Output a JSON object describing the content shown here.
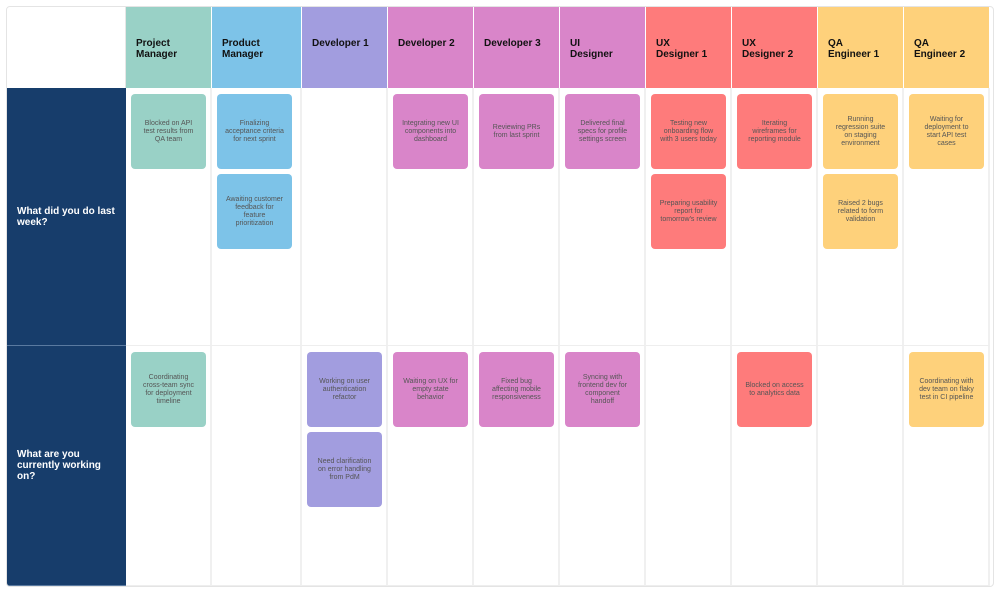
{
  "columns": [
    {
      "title": "Project\nManager",
      "color": "#99d1c6"
    },
    {
      "title": "Product\nManager",
      "color": "#7dc3e8"
    },
    {
      "title": "Developer 1",
      "color": "#a29ddf"
    },
    {
      "title": "Developer 2",
      "color": "#d985c9"
    },
    {
      "title": "Developer 3",
      "color": "#d985c9"
    },
    {
      "title": "UI\nDesigner",
      "color": "#d985c9"
    },
    {
      "title": "UX\nDesigner 1",
      "color": "#fe7b7b"
    },
    {
      "title": "UX\nDesigner 2",
      "color": "#fe7b7b"
    },
    {
      "title": "QA\nEngineer 1",
      "color": "#fed17b"
    },
    {
      "title": "QA\nEngineer 2",
      "color": "#fed17b"
    }
  ],
  "rows": [
    {
      "label": "What did you do last week?",
      "cells": [
        [
          "Blocked on API test results from QA team"
        ],
        [
          "Finalizing acceptance criteria for next sprint",
          "Awaiting customer feedback for feature prioritization"
        ],
        [],
        [
          "Integrating new UI components into dashboard"
        ],
        [
          "Reviewing PRs from last sprint"
        ],
        [
          "Delivered final specs for profile settings screen"
        ],
        [
          "Testing new onboarding flow with 3 users today",
          "Preparing usability report for tomorrow's review"
        ],
        [
          "Iterating wireframes for reporting module"
        ],
        [
          "Running regression suite on staging environment",
          "Raised 2 bugs related to form validation"
        ],
        [
          "Waiting for deployment to start API test cases"
        ]
      ]
    },
    {
      "label": "What are you currently working on?",
      "cells": [
        [
          "Coordinating cross-team sync for deployment timeline"
        ],
        [],
        [
          "Working on user authentication refactor",
          "Need clarification on error handling from PdM"
        ],
        [
          "Waiting on UX for empty state behavior"
        ],
        [
          "Fixed bug affecting mobile responsiveness"
        ],
        [
          "Syncing with frontend dev for component handoff"
        ],
        [],
        [
          "Blocked on access to analytics data"
        ],
        [],
        [
          "Coordinating with dev team on flaky test in CI pipeline"
        ]
      ]
    }
  ]
}
